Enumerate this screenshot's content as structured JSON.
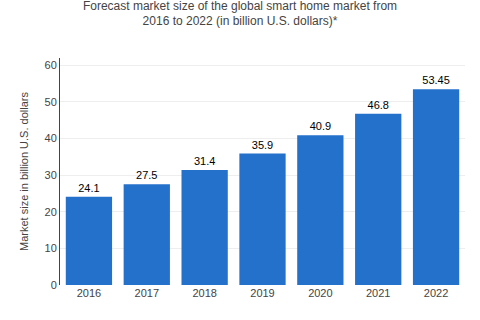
{
  "chart_data": {
    "type": "bar",
    "title": "Forecast market size of the global smart home market from\n2016 to 2022 (in billion U.S. dollars)*",
    "ylabel": "Market size in billion U.S. dollars",
    "categories": [
      "2016",
      "2017",
      "2018",
      "2019",
      "2020",
      "2021",
      "2022"
    ],
    "values": [
      24.1,
      27.5,
      31.4,
      35.9,
      40.9,
      46.8,
      53.45
    ],
    "color": "#2471cc",
    "ylim": [
      0,
      62
    ],
    "yticks": [
      0,
      10,
      20,
      30,
      40,
      50,
      60
    ],
    "grid": true,
    "data_labels": true
  }
}
